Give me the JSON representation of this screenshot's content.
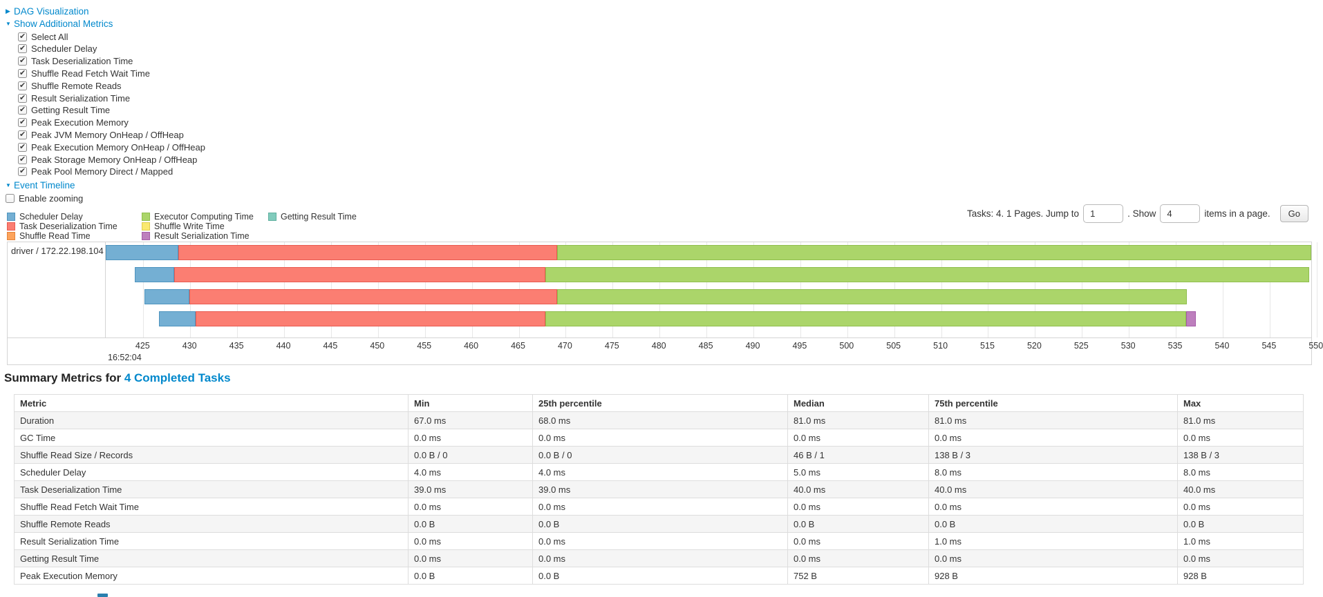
{
  "icons": {
    "collapsed": "▶",
    "expanded": "▼"
  },
  "sections": {
    "dag": {
      "label": "DAG Visualization",
      "collapsed": true
    },
    "additional_metrics": {
      "label": "Show Additional Metrics",
      "items": [
        {
          "label": "Select All",
          "checked": true
        },
        {
          "label": "Scheduler Delay",
          "checked": true
        },
        {
          "label": "Task Deserialization Time",
          "checked": true
        },
        {
          "label": "Shuffle Read Fetch Wait Time",
          "checked": true
        },
        {
          "label": "Shuffle Remote Reads",
          "checked": true
        },
        {
          "label": "Result Serialization Time",
          "checked": true
        },
        {
          "label": "Getting Result Time",
          "checked": true
        },
        {
          "label": "Peak Execution Memory",
          "checked": true
        },
        {
          "label": "Peak JVM Memory OnHeap / OffHeap",
          "checked": true
        },
        {
          "label": "Peak Execution Memory OnHeap / OffHeap",
          "checked": true
        },
        {
          "label": "Peak Storage Memory OnHeap / OffHeap",
          "checked": true
        },
        {
          "label": "Peak Pool Memory Direct / Mapped",
          "checked": true
        }
      ]
    },
    "event_timeline": {
      "label": "Event Timeline",
      "enable_zooming": {
        "label": "Enable zooming",
        "checked": false
      }
    }
  },
  "legend": {
    "items": [
      {
        "label": "Scheduler Delay",
        "key": "scheduler_delay",
        "col": 0,
        "row": 0
      },
      {
        "label": "Task Deserialization Time",
        "key": "task_deserialization",
        "col": 0,
        "row": 1
      },
      {
        "label": "Shuffle Read Time",
        "key": "shuffle_read",
        "col": 0,
        "row": 2
      },
      {
        "label": "Executor Computing Time",
        "key": "executor_computing",
        "col": 1,
        "row": 0
      },
      {
        "label": "Shuffle Write Time",
        "key": "shuffle_write",
        "col": 1,
        "row": 1
      },
      {
        "label": "Result Serialization Time",
        "key": "result_serialization",
        "col": 1,
        "row": 2
      },
      {
        "label": "Getting Result Time",
        "key": "getting_result",
        "col": 2,
        "row": 0
      }
    ]
  },
  "palette": {
    "scheduler_delay": {
      "fill": "#74AFD3",
      "border": "#4E94BE"
    },
    "task_deserialization": {
      "fill": "#FB7E72",
      "border": "#E85A50"
    },
    "shuffle_read": {
      "fill": "#FDA35B",
      "border": "#E2833B"
    },
    "executor_computing": {
      "fill": "#ABD56A",
      "border": "#8FBE4D"
    },
    "shuffle_write": {
      "fill": "#FAE96F",
      "border": "#DFCB4E"
    },
    "result_serialization": {
      "fill": "#BD7FBD",
      "border": "#A55CA8"
    },
    "getting_result": {
      "fill": "#81CBBC",
      "border": "#5FAF9F"
    }
  },
  "pagination": {
    "summary": "Tasks: 4. 1 Pages. Jump to",
    "jump_value": "1",
    "show_label": ". Show",
    "show_value": "4",
    "items_label": "items in a page.",
    "go_label": "Go"
  },
  "chart_data": {
    "type": "timeline",
    "group_label": "driver / 172.22.198.104",
    "axis": {
      "min": 421.0,
      "max": 549.5,
      "tick_first": 425,
      "tick_last": 550,
      "tick_step": 5,
      "major_label": "16:52:04"
    },
    "tasks": [
      {
        "segments": [
          {
            "type": "scheduler_delay",
            "start": 421.0,
            "end": 428.7
          },
          {
            "type": "task_deserialization",
            "start": 428.7,
            "end": 469.1
          },
          {
            "type": "executor_computing",
            "start": 469.1,
            "end": 549.4
          }
        ]
      },
      {
        "segments": [
          {
            "type": "scheduler_delay",
            "start": 424.1,
            "end": 428.3
          },
          {
            "type": "task_deserialization",
            "start": 428.3,
            "end": 467.8
          },
          {
            "type": "executor_computing",
            "start": 467.8,
            "end": 549.2
          }
        ]
      },
      {
        "segments": [
          {
            "type": "scheduler_delay",
            "start": 425.1,
            "end": 429.9
          },
          {
            "type": "task_deserialization",
            "start": 429.9,
            "end": 469.1
          },
          {
            "type": "executor_computing",
            "start": 469.1,
            "end": 536.2
          }
        ]
      },
      {
        "segments": [
          {
            "type": "scheduler_delay",
            "start": 426.7,
            "end": 430.6
          },
          {
            "type": "task_deserialization",
            "start": 430.6,
            "end": 467.8
          },
          {
            "type": "executor_computing",
            "start": 467.8,
            "end": 536.1
          },
          {
            "type": "result_serialization",
            "start": 536.1,
            "end": 537.1
          }
        ]
      }
    ]
  },
  "summary_table": {
    "title_prefix": "Summary Metrics for ",
    "title_link": "4 Completed Tasks",
    "columns": [
      "Metric",
      "Min",
      "25th percentile",
      "Median",
      "75th percentile",
      "Max"
    ],
    "rows": [
      {
        "metric": "Duration",
        "values": [
          "67.0 ms",
          "68.0 ms",
          "81.0 ms",
          "81.0 ms",
          "81.0 ms"
        ]
      },
      {
        "metric": "GC Time",
        "values": [
          "0.0 ms",
          "0.0 ms",
          "0.0 ms",
          "0.0 ms",
          "0.0 ms"
        ]
      },
      {
        "metric": "Shuffle Read Size / Records",
        "values": [
          "0.0 B / 0",
          "0.0 B / 0",
          "46 B / 1",
          "138 B / 3",
          "138 B / 3"
        ]
      },
      {
        "metric": "Scheduler Delay",
        "values": [
          "4.0 ms",
          "4.0 ms",
          "5.0 ms",
          "8.0 ms",
          "8.0 ms"
        ]
      },
      {
        "metric": "Task Deserialization Time",
        "values": [
          "39.0 ms",
          "39.0 ms",
          "40.0 ms",
          "40.0 ms",
          "40.0 ms"
        ]
      },
      {
        "metric": "Shuffle Read Fetch Wait Time",
        "values": [
          "0.0 ms",
          "0.0 ms",
          "0.0 ms",
          "0.0 ms",
          "0.0 ms"
        ]
      },
      {
        "metric": "Shuffle Remote Reads",
        "values": [
          "0.0 B",
          "0.0 B",
          "0.0 B",
          "0.0 B",
          "0.0 B"
        ]
      },
      {
        "metric": "Result Serialization Time",
        "values": [
          "0.0 ms",
          "0.0 ms",
          "0.0 ms",
          "1.0 ms",
          "1.0 ms"
        ]
      },
      {
        "metric": "Getting Result Time",
        "values": [
          "0.0 ms",
          "0.0 ms",
          "0.0 ms",
          "0.0 ms",
          "0.0 ms"
        ]
      },
      {
        "metric": "Peak Execution Memory",
        "values": [
          "0.0 B",
          "0.0 B",
          "752 B",
          "928 B",
          "928 B"
        ]
      }
    ]
  }
}
